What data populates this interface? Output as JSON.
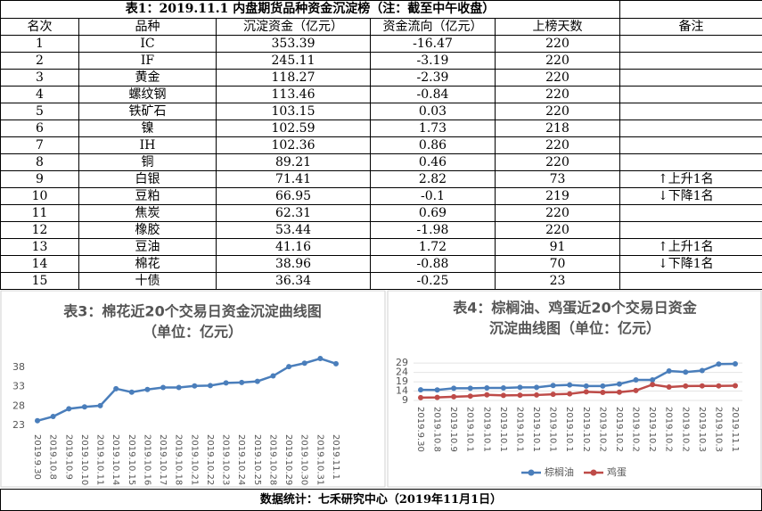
{
  "table": {
    "title": "表1：2019.11.1 内盘期货品种资金沉淀榜（注：截至中午收盘）",
    "headers": [
      "名次",
      "品种",
      "沉淀资金（亿元）",
      "资金流向（亿元）",
      "上榜天数",
      "备注"
    ],
    "rows": [
      [
        "1",
        "IC",
        "353.39",
        "-16.47",
        "220"
      ],
      [
        "2",
        "IF",
        "245.11",
        "-3.19",
        "220"
      ],
      [
        "3",
        "黄金",
        "118.27",
        "-2.39",
        "220"
      ],
      [
        "4",
        "螺纹钢",
        "113.46",
        "-0.84",
        "220"
      ],
      [
        "5",
        "铁矿石",
        "103.15",
        "0.03",
        "220"
      ],
      [
        "6",
        "镍",
        "102.59",
        "1.73",
        "218"
      ],
      [
        "7",
        "IH",
        "102.36",
        "0.86",
        "220"
      ],
      [
        "8",
        "铜",
        "89.21",
        "0.46",
        "220"
      ],
      [
        "9",
        "白银",
        "71.41",
        "2.82",
        "73",
        "↑上升1名"
      ],
      [
        "10",
        "豆粕",
        "66.95",
        "-0.1",
        "219",
        "↓下降1名"
      ],
      [
        "11",
        "焦炭",
        "62.31",
        "0.69",
        "220"
      ],
      [
        "12",
        "橡胶",
        "53.44",
        "-1.98",
        "220"
      ],
      [
        "13",
        "豆油",
        "41.16",
        "1.72",
        "91",
        "↑上升1名"
      ],
      [
        "14",
        "棉花",
        "38.96",
        "-0.88",
        "70",
        "↓下降1名"
      ],
      [
        "15",
        "十债",
        "36.34",
        "-0.25",
        "23"
      ]
    ]
  },
  "charts": [
    {
      "type": "line",
      "title": [
        "表3：棉花近20个交易日资金沉淀曲线图",
        "（单位：亿元）"
      ],
      "categories": [
        "2019.9.30",
        "2019.10.8",
        "2019.10.9",
        "2019.10.10",
        "2019.10.11",
        "2019.10.14",
        "2019.10.15",
        "2019.10.16",
        "2019.10.17",
        "2019.10.18",
        "2019.10.21",
        "2019.10.22",
        "2019.10.23",
        "2019.10.24",
        "2019.10.25",
        "2019.10.28",
        "2019.10.29",
        "2019.10.30",
        "2019.10.31",
        "2019.11.1"
      ],
      "series": [
        {
          "color": "#4a7ebb",
          "values": [
            24.2,
            25.3,
            27.3,
            27.8,
            28.1,
            32.5,
            31.6,
            32.3,
            32.8,
            32.8,
            33.2,
            33.3,
            34.0,
            34.1,
            34.4,
            35.8,
            38.2,
            39.1,
            40.3,
            38.96
          ]
        }
      ],
      "ylim": [
        23,
        41
      ],
      "yticks": [
        23,
        28,
        33,
        38
      ]
    },
    {
      "type": "line",
      "title": [
        "表4：棕榈油、鸡蛋近20个交易日资金",
        "沉淀曲线图（单位：亿元）"
      ],
      "categories": [
        "2019.9.30",
        "2019.10.8",
        "2019.10.9",
        "2019.10.1",
        "2019.10.1",
        "2019.10.1",
        "2019.10.1",
        "2019.10.1",
        "2019.10.1",
        "2019.10.1",
        "2019.10.2",
        "2019.10.2",
        "2019.10.2",
        "2019.10.2",
        "2019.10.2",
        "2019.10.2",
        "2019.10.2",
        "2019.10.3",
        "2019.10.3",
        "2019.11.1"
      ],
      "series": [
        {
          "name": "棕榈油",
          "color": "#4a7ebb",
          "values": [
            14.7,
            14.6,
            15.5,
            15.5,
            15.7,
            15.7,
            16.0,
            16.0,
            17.0,
            17.3,
            16.7,
            16.7,
            17.8,
            20.0,
            20.0,
            24.8,
            24.2,
            25.0,
            28.5,
            28.6
          ]
        },
        {
          "name": "鸡蛋",
          "color": "#be4b48",
          "values": [
            10.5,
            10.6,
            11.0,
            11.3,
            12.0,
            11.7,
            11.8,
            11.9,
            12.3,
            12.5,
            13.6,
            13.3,
            13.4,
            14.3,
            17.5,
            16.2,
            16.7,
            16.8,
            16.8,
            16.9
          ]
        }
      ],
      "ylim": [
        9,
        31
      ],
      "yticks": [
        9,
        14,
        19,
        24,
        29
      ]
    }
  ],
  "footer": "数据统计：七禾研究中心（2019年11月1日）"
}
